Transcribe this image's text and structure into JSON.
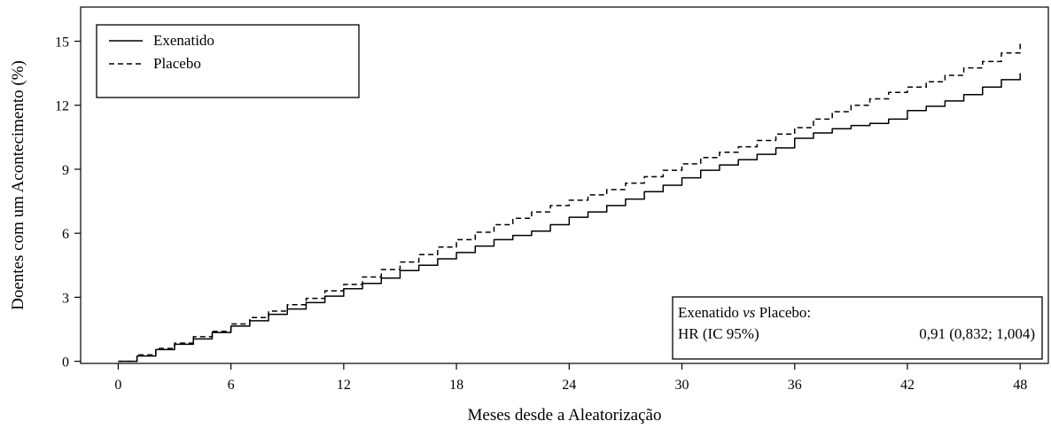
{
  "chart_data": {
    "type": "line",
    "xlabel": "Meses desde a Aleatorização",
    "ylabel": "Doentes com um Acontecimento (%)",
    "xlim": [
      -2,
      49.5
    ],
    "ylim": [
      -0.1,
      16.6
    ],
    "xticks": [
      0,
      6,
      12,
      18,
      24,
      30,
      36,
      42,
      48
    ],
    "yticks": [
      0,
      3,
      6,
      9,
      12,
      15
    ],
    "legend_position": "top-left",
    "series": [
      {
        "name": "Exenatido",
        "style": "solid",
        "x": [
          0,
          1,
          2,
          3,
          4,
          5,
          6,
          7,
          8,
          9,
          10,
          11,
          12,
          13,
          14,
          15,
          16,
          17,
          18,
          19,
          20,
          21,
          22,
          23,
          24,
          25,
          26,
          27,
          28,
          29,
          30,
          31,
          32,
          33,
          34,
          35,
          36,
          37,
          38,
          39,
          40,
          41,
          42,
          43,
          44,
          45,
          46,
          47,
          48
        ],
        "y": [
          0,
          0.25,
          0.55,
          0.8,
          1.05,
          1.35,
          1.65,
          1.9,
          2.2,
          2.45,
          2.75,
          3.05,
          3.4,
          3.65,
          3.9,
          4.25,
          4.5,
          4.8,
          5.1,
          5.4,
          5.7,
          5.9,
          6.1,
          6.4,
          6.75,
          7.0,
          7.3,
          7.6,
          7.95,
          8.25,
          8.6,
          8.95,
          9.2,
          9.45,
          9.7,
          10.0,
          10.45,
          10.7,
          10.9,
          11.05,
          11.15,
          11.35,
          11.75,
          11.95,
          12.2,
          12.5,
          12.85,
          13.2,
          13.5
        ]
      },
      {
        "name": "Placebo",
        "style": "dashed",
        "x": [
          0,
          1,
          2,
          3,
          4,
          5,
          6,
          7,
          8,
          9,
          10,
          11,
          12,
          13,
          14,
          15,
          16,
          17,
          18,
          19,
          20,
          21,
          22,
          23,
          24,
          25,
          26,
          27,
          28,
          29,
          30,
          31,
          32,
          33,
          34,
          35,
          36,
          37,
          38,
          39,
          40,
          41,
          42,
          43,
          44,
          45,
          46,
          47,
          48
        ],
        "y": [
          0,
          0.3,
          0.6,
          0.85,
          1.15,
          1.4,
          1.75,
          2.05,
          2.35,
          2.65,
          2.95,
          3.3,
          3.6,
          3.95,
          4.3,
          4.65,
          5.0,
          5.35,
          5.7,
          6.05,
          6.4,
          6.7,
          7.0,
          7.3,
          7.55,
          7.8,
          8.05,
          8.35,
          8.65,
          8.95,
          9.25,
          9.55,
          9.8,
          10.05,
          10.35,
          10.65,
          10.95,
          11.35,
          11.7,
          12.0,
          12.3,
          12.6,
          12.85,
          13.1,
          13.4,
          13.75,
          14.05,
          14.45,
          14.95
        ]
      }
    ],
    "hr_box": {
      "title_start": "Exenatido ",
      "title_vs": "vs",
      "title_end": " Placebo:",
      "label": "HR (IC 95%)",
      "value": "0,91 (0,832; 1,004)"
    }
  }
}
